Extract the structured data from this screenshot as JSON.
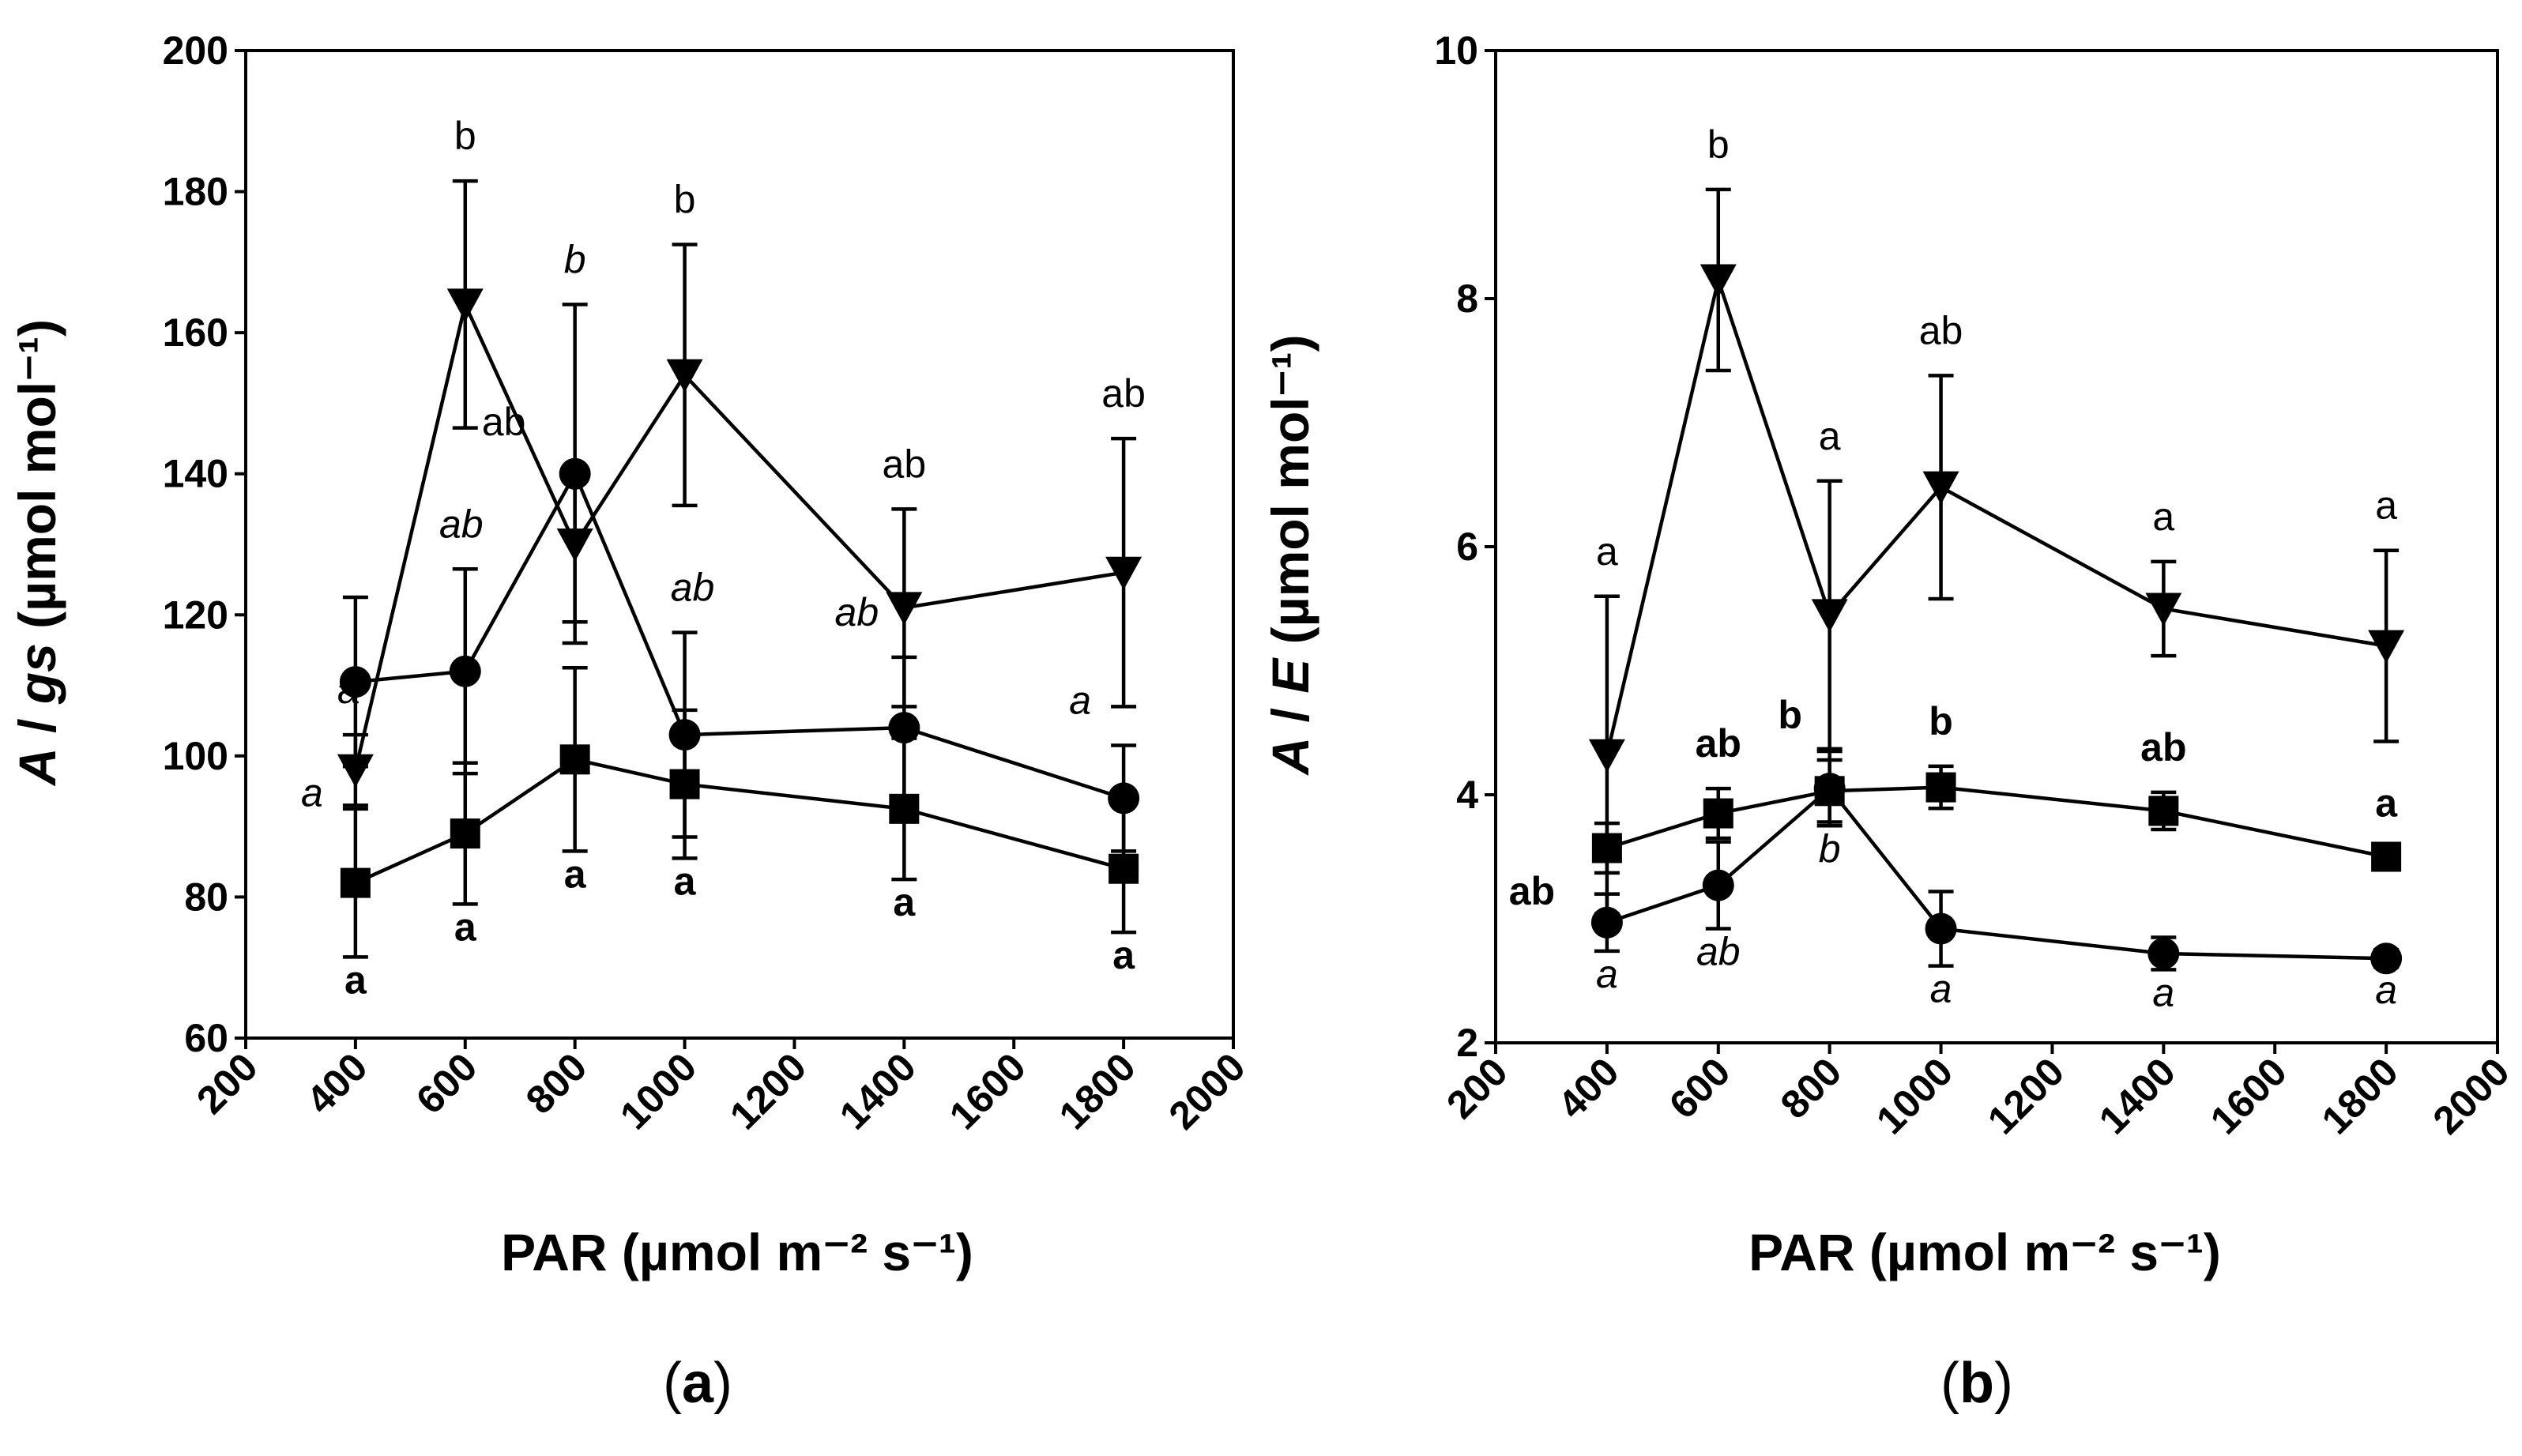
{
  "chart_data": [
    {
      "type": "line",
      "panel_label_pre": "(",
      "panel_label_letter": "a",
      "panel_label_post": ")",
      "ylabel_italic_a": "A",
      "ylabel_slash": " / ",
      "ylabel_italic_b": "gs",
      "ylabel_units": " (µmol mol⁻¹)",
      "xlabel": "PAR (µmol m⁻² s⁻¹)",
      "xlim": [
        200,
        2000
      ],
      "ylim": [
        60,
        200
      ],
      "xticks": [
        200,
        400,
        600,
        800,
        1000,
        1200,
        1400,
        1600,
        1800,
        2000
      ],
      "yticks": [
        60,
        80,
        100,
        120,
        140,
        160,
        180,
        200
      ],
      "x": [
        400,
        600,
        800,
        1000,
        1400,
        1800
      ],
      "series": [
        {
          "name": "circle",
          "marker": "circle",
          "values": [
            110.5,
            112,
            140,
            103,
            104,
            94
          ],
          "errors": [
            12,
            14.5,
            24,
            14.5,
            10,
            7.5
          ],
          "letters": [
            "a",
            "ab",
            "b",
            "ab",
            "ab",
            "a"
          ],
          "letter_style": "italic"
        },
        {
          "name": "square",
          "marker": "square",
          "values": [
            82,
            89,
            99.5,
            96,
            92.5,
            84
          ],
          "errors": [
            10.5,
            10,
            13,
            10.5,
            10,
            9
          ],
          "letters": [
            "a",
            "a",
            "a",
            "a",
            "a",
            "a"
          ],
          "letter_style": "bold"
        },
        {
          "name": "triangle",
          "marker": "triangle-down",
          "values": [
            98,
            164,
            130,
            154,
            121,
            126
          ],
          "errors": [
            5,
            17.5,
            11,
            18.5,
            14,
            19
          ],
          "letters": [
            "a",
            "b",
            "ab",
            "b",
            "ab",
            "ab"
          ],
          "letter_style": "normal"
        }
      ]
    },
    {
      "type": "line",
      "panel_label_pre": "(",
      "panel_label_letter": "b",
      "panel_label_post": ")",
      "ylabel_italic_a": "A",
      "ylabel_slash": " / ",
      "ylabel_italic_b": "E",
      "ylabel_units": " (µmol mol⁻¹)",
      "xlabel": "PAR (µmol m⁻² s⁻¹)",
      "xlim": [
        200,
        2000
      ],
      "ylim": [
        2,
        10
      ],
      "xticks": [
        200,
        400,
        600,
        800,
        1000,
        1200,
        1400,
        1600,
        1800,
        2000
      ],
      "yticks": [
        2,
        4,
        6,
        8,
        10
      ],
      "x": [
        400,
        600,
        800,
        1000,
        1400,
        1800
      ],
      "series": [
        {
          "name": "circle",
          "marker": "circle",
          "values": [
            2.97,
            3.27,
            4.05,
            2.92,
            2.72,
            2.68
          ],
          "errors": [
            0.23,
            0.35,
            0.3,
            0.3,
            0.13,
            0.07
          ],
          "letters": [
            "a",
            "ab",
            "b",
            "a",
            "a",
            "a"
          ],
          "letter_style": "italic"
        },
        {
          "name": "square",
          "marker": "square",
          "values": [
            3.57,
            3.85,
            4.03,
            4.06,
            3.87,
            3.5
          ],
          "errors": [
            0.2,
            0.2,
            0.25,
            0.17,
            0.15,
            0.07
          ],
          "letters": [
            "ab",
            "ab",
            "b",
            "b",
            "ab",
            "a"
          ],
          "letter_style": "bold"
        },
        {
          "name": "triangle",
          "marker": "triangle-down",
          "values": [
            4.32,
            8.15,
            5.45,
            6.48,
            5.5,
            5.2
          ],
          "errors": [
            1.28,
            0.73,
            1.08,
            0.9,
            0.38,
            0.77
          ],
          "letters": [
            "a",
            "b",
            "a",
            "ab",
            "a",
            "a"
          ],
          "letter_style": "normal"
        }
      ]
    }
  ]
}
